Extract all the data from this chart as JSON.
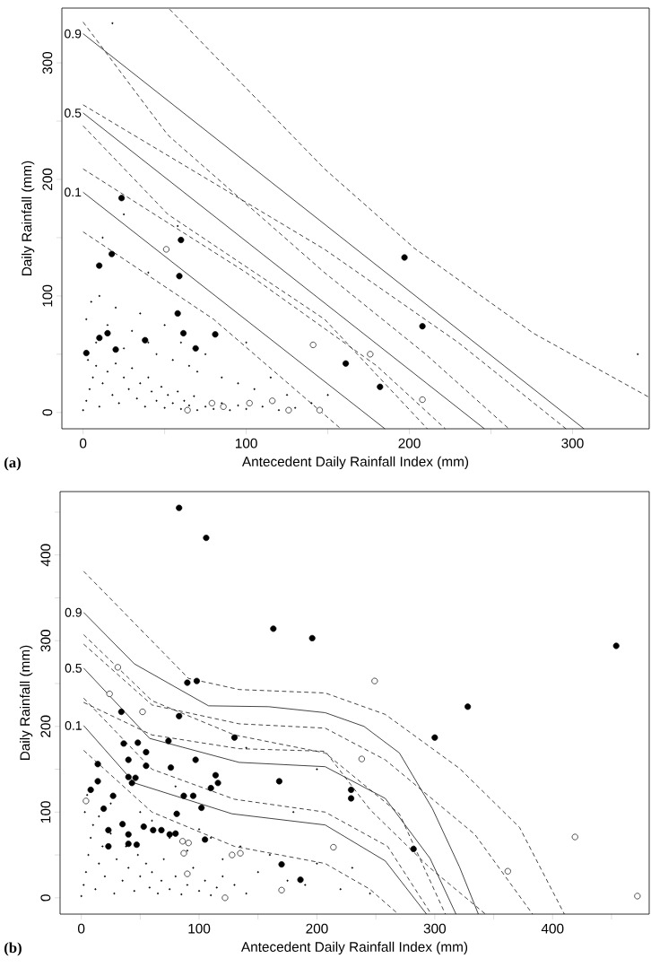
{
  "chart_data": [
    {
      "type": "scatter",
      "xlabel": "Antecedent Daily Rainfall Index (mm)",
      "ylabel": "Daily Rainfall (mm)",
      "annotations": [
        "(a)"
      ],
      "xlim": [
        -13,
        347
      ],
      "ylim": [
        -14,
        347
      ],
      "xticks": [
        0,
        {
          "value": 50,
          "label": null
        },
        100,
        {
          "value": 150,
          "label": null
        },
        200,
        {
          "value": 250,
          "label": null
        },
        300
      ],
      "yticks": [
        0,
        {
          "value": 50,
          "label": null
        },
        100,
        {
          "value": 150,
          "label": null
        },
        200,
        {
          "value": 250,
          "label": null
        },
        300
      ],
      "series": [
        {
          "marker": "point",
          "color": "#000000",
          "x": [
            0,
            2,
            4,
            6,
            8,
            3,
            10,
            12,
            15,
            18,
            20,
            22,
            25,
            28,
            30,
            33,
            35,
            38,
            40,
            42,
            45,
            48,
            50,
            52,
            55,
            58,
            60,
            62,
            65,
            68,
            70,
            75,
            80,
            85,
            90,
            95,
            100,
            110,
            120,
            130,
            140,
            2,
            5,
            8,
            10,
            15,
            20,
            25,
            30,
            35,
            40,
            45,
            50,
            55,
            60,
            65,
            70,
            75,
            85,
            95,
            105,
            115,
            125,
            150,
            12,
            25,
            58,
            40,
            100,
            18,
            340
          ],
          "values": [
            2,
            10,
            20,
            30,
            40,
            45,
            5,
            25,
            35,
            15,
            42,
            8,
            30,
            20,
            38,
            12,
            25,
            5,
            30,
            18,
            10,
            22,
            4,
            15,
            8,
            18,
            3,
            10,
            6,
            14,
            2,
            5,
            3,
            8,
            2,
            6,
            3,
            5,
            2,
            4,
            8,
            80,
            95,
            60,
            100,
            75,
            90,
            55,
            70,
            85,
            60,
            50,
            75,
            45,
            60,
            40,
            35,
            50,
            30,
            25,
            20,
            30,
            15,
            15,
            150,
            170,
            160,
            120,
            60,
            334,
            50
          ]
        },
        {
          "marker": "circle",
          "color": "#000000",
          "x": [
            23.6,
            60,
            17.6,
            9.9,
            59,
            58,
            61.5,
            81,
            38,
            15,
            10,
            69,
            20,
            2,
            197,
            208,
            161,
            182
          ],
          "values": [
            184,
            148,
            136,
            126,
            117,
            85,
            68,
            67,
            62,
            68,
            64,
            55,
            54,
            51,
            133,
            74,
            42,
            22
          ]
        },
        {
          "marker": "open circle",
          "color": "#000000",
          "x": [
            51,
            141,
            176,
            208,
            64,
            79,
            86,
            102,
            116,
            126,
            145
          ],
          "values": [
            140,
            58,
            50,
            11,
            2,
            8,
            5,
            8,
            10,
            2,
            2
          ]
        },
        {
          "type": "line",
          "name": "0.9",
          "line_style": "solid",
          "color": "#000000",
          "x": [
            0,
            307
          ],
          "values": [
            325,
            -14
          ]
        },
        {
          "type": "line",
          "name": "0.5",
          "line_style": "solid",
          "color": "#000000",
          "x": [
            0,
            246
          ],
          "values": [
            257,
            -14
          ]
        },
        {
          "type": "line",
          "name": "0.1",
          "line_style": "solid",
          "color": "#000000",
          "x": [
            0,
            185
          ],
          "values": [
            189,
            -14
          ]
        },
        {
          "type": "line",
          "line_style": "dashed",
          "color": "#000000",
          "x": [
            53,
            148,
            203,
            276,
            347
          ],
          "values": [
            346,
            209,
            141,
            68,
            13
          ]
        },
        {
          "type": "line",
          "line_style": "dashed",
          "color": "#000000",
          "x": [
            0,
            52,
            148,
            210,
            261
          ],
          "values": [
            335,
            238,
            120,
            50,
            -14
          ]
        },
        {
          "type": "line",
          "line_style": "dashed",
          "color": "#000000",
          "x": [
            0,
            148,
            230,
            296
          ],
          "values": [
            264,
            140,
            60,
            -14
          ]
        },
        {
          "type": "line",
          "line_style": "dashed",
          "color": "#000000",
          "x": [
            0,
            52,
            148,
            211
          ],
          "values": [
            246,
            170,
            80,
            -14
          ]
        },
        {
          "type": "line",
          "line_style": "dashed",
          "color": "#000000",
          "x": [
            0,
            100,
            180,
            222
          ],
          "values": [
            209,
            120,
            40,
            -14
          ]
        },
        {
          "type": "line",
          "line_style": "dashed",
          "color": "#000000",
          "x": [
            0,
            80,
            158
          ],
          "values": [
            155,
            80,
            -14
          ]
        }
      ]
    },
    {
      "type": "scatter",
      "xlabel": "Antecedent Daily Rainfall Index (mm)",
      "ylabel": "Daily Rainfall (mm)",
      "annotations": [
        "(b)"
      ],
      "xlim": [
        -18,
        482
      ],
      "ylim": [
        -19,
        474
      ],
      "xticks": [
        0,
        {
          "value": 50,
          "label": null
        },
        100,
        {
          "value": 150,
          "label": null
        },
        200,
        {
          "value": 250,
          "label": null
        },
        300,
        {
          "value": 350,
          "label": null
        },
        400,
        {
          "value": 450,
          "label": null
        }
      ],
      "yticks": [
        0,
        {
          "value": 50,
          "label": null
        },
        100,
        {
          "value": 150,
          "label": null
        },
        200,
        {
          "value": 250,
          "label": null
        },
        300,
        {
          "value": 350,
          "label": null
        },
        400,
        {
          "value": 450,
          "label": null
        }
      ],
      "series": [
        {
          "marker": "point",
          "color": "#000000",
          "x": [
            0,
            2,
            4,
            6,
            8,
            10,
            3,
            12,
            15,
            18,
            20,
            25,
            28,
            30,
            35,
            38,
            40,
            45,
            48,
            50,
            55,
            58,
            60,
            65,
            68,
            70,
            75,
            80,
            85,
            90,
            95,
            100,
            105,
            110,
            115,
            120,
            130,
            140,
            5,
            15,
            25,
            50,
            60,
            75,
            90,
            100,
            120,
            135,
            150,
            160,
            175,
            190,
            200,
            220,
            230,
            245,
            180,
            140,
            200,
            80,
            110
          ],
          "values": [
            2,
            15,
            30,
            50,
            70,
            85,
            100,
            10,
            40,
            60,
            25,
            75,
            5,
            45,
            20,
            60,
            35,
            8,
            50,
            25,
            40,
            12,
            30,
            5,
            20,
            45,
            10,
            25,
            4,
            15,
            35,
            8,
            20,
            3,
            12,
            25,
            15,
            5,
            120,
            95,
            110,
            100,
            90,
            70,
            55,
            80,
            45,
            60,
            30,
            50,
            20,
            15,
            40,
            10,
            35,
            5,
            100,
            175,
            150,
            130,
            70
          ]
        },
        {
          "marker": "circle",
          "color": "#000000",
          "x": [
            83,
            106,
            163,
            196,
            90,
            98,
            34,
            83,
            130,
            74,
            36,
            48,
            55,
            40,
            97,
            14,
            55,
            76,
            40,
            46,
            43,
            14,
            114,
            116,
            168,
            8,
            110,
            87,
            95,
            27,
            102,
            19,
            81,
            35,
            53,
            61,
            68,
            23,
            40,
            75,
            80,
            105,
            40,
            47,
            23,
            170,
            186,
            454,
            328,
            300,
            229,
            229,
            282
          ],
          "values": [
            455,
            420,
            314,
            303,
            251,
            253,
            217,
            212,
            187,
            183,
            180,
            181,
            170,
            161,
            161,
            156,
            154,
            152,
            141,
            140,
            134,
            136,
            143,
            134,
            136,
            126,
            128,
            119,
            119,
            119,
            105,
            104,
            98,
            86,
            83,
            79,
            79,
            79,
            74,
            74,
            75,
            68,
            63,
            62,
            60,
            39,
            21,
            294,
            223,
            187,
            126,
            116,
            57
          ]
        },
        {
          "marker": "open circle",
          "color": "#000000",
          "x": [
            31,
            24,
            52,
            4,
            86,
            91,
            87,
            128,
            135,
            90,
            122,
            170,
            249,
            238,
            214,
            362,
            419,
            472
          ],
          "values": [
            269,
            238,
            217,
            113,
            66,
            64,
            52,
            50,
            52,
            28,
            0,
            9,
            253,
            162,
            59,
            31,
            71,
            2
          ]
        },
        {
          "type": "line",
          "name": "0.9",
          "line_style": "solid",
          "color": "#000000",
          "x": [
            2,
            45,
            108,
            159,
            207,
            240,
            270,
            298,
            321,
            337
          ],
          "values": [
            333,
            273,
            224,
            223,
            216,
            200,
            169,
            104,
            36,
            -19
          ]
        },
        {
          "type": "line",
          "name": "0.5",
          "line_style": "solid",
          "color": "#000000",
          "x": [
            2,
            58,
            134,
            207,
            258,
            296,
            318
          ],
          "values": [
            268,
            186,
            158,
            153,
            116,
            46,
            -19
          ]
        },
        {
          "type": "line",
          "name": "0.1",
          "line_style": "solid",
          "color": "#000000",
          "x": [
            2,
            45,
            128,
            207,
            258,
            293
          ],
          "values": [
            201,
            134,
            98,
            85,
            43,
            -19
          ]
        },
        {
          "type": "line",
          "line_style": "dashed",
          "color": "#000000",
          "x": [
            2,
            91,
            134,
            207,
            258,
            321,
            372,
            410
          ],
          "values": [
            381,
            256,
            243,
            239,
            214,
            151,
            82,
            -19
          ]
        },
        {
          "type": "line",
          "line_style": "dashed",
          "color": "#000000",
          "x": [
            2,
            60,
            134,
            207,
            258,
            334,
            383
          ],
          "values": [
            296,
            225,
            203,
            198,
            161,
            74,
            -19
          ]
        },
        {
          "type": "line",
          "line_style": "dashed",
          "color": "#000000",
          "x": [
            2,
            60,
            134,
            207,
            245,
            295,
            343
          ],
          "values": [
            228,
            190,
            174,
            171,
            103,
            36,
            -19
          ]
        },
        {
          "type": "line",
          "line_style": "dashed",
          "color": "#000000",
          "x": [
            2,
            60,
            130,
            207,
            270,
            309
          ],
          "values": [
            307,
            230,
            190,
            169,
            98,
            -19
          ]
        },
        {
          "type": "line",
          "line_style": "dashed",
          "color": "#000000",
          "x": [
            2,
            60,
            130,
            207,
            260,
            297
          ],
          "values": [
            233,
            150,
            115,
            100,
            60,
            -19
          ]
        },
        {
          "type": "line",
          "line_style": "dashed",
          "color": "#000000",
          "x": [
            2,
            60,
            130,
            207,
            245,
            269
          ],
          "values": [
            172,
            100,
            60,
            40,
            10,
            -19
          ]
        }
      ]
    }
  ]
}
